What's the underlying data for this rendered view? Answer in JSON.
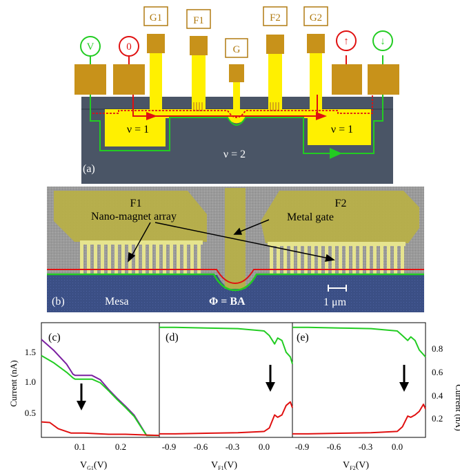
{
  "panel_a": {
    "panel_label": "(a)",
    "top_labels": [
      "V",
      "0",
      "G1",
      "F1",
      "G",
      "F2",
      "G2",
      "↑",
      "↓"
    ],
    "nu1_left": "ν = 1",
    "nu1_right": "ν = 1",
    "nu2": "ν = 2",
    "colors": {
      "substrate": "#4a5566",
      "gold": "#c8921a",
      "yellow": "#fff000",
      "green": "#22cc22",
      "red": "#e01010"
    }
  },
  "panel_b": {
    "panel_label": "(b)",
    "f1": "F1",
    "f2": "F2",
    "nano_label": "Nano-magnet array",
    "gate_label": "Metal gate",
    "mesa": "Mesa",
    "phi": "Φ = BA",
    "scale": "1 μm"
  },
  "panel_c": {
    "panel_label": "(c)",
    "ylabel": "Current (nA)",
    "xlabel_main": "V",
    "xlabel_sub": "G1",
    "xlabel_unit": "(V)",
    "yticks": [
      "1.5",
      "1.0",
      "0.5"
    ],
    "xticks": [
      "0.1",
      "0.2"
    ]
  },
  "panel_d": {
    "panel_label": "(d)",
    "xlabel_main": "V",
    "xlabel_sub": "F1",
    "xlabel_unit": "(V)",
    "xticks": [
      "-0.9",
      "-0.6",
      "-0.3",
      "0.0"
    ]
  },
  "panel_e": {
    "panel_label": "(e)",
    "ylabel": "Current (nA)",
    "xlabel_main": "V",
    "xlabel_sub": "F2",
    "xlabel_unit": "(V)",
    "xticks": [
      "-0.9",
      "-0.6",
      "-0.3",
      "0.0"
    ],
    "yticks": [
      "0.8",
      "0.6",
      "0.4",
      "0.2"
    ]
  },
  "chart_data": [
    {
      "type": "line",
      "panel": "c",
      "ylabel": "Current (nA)",
      "xlabel": "VG1(V)",
      "xlim": [
        0.0,
        0.28
      ],
      "ylim": [
        0.0,
        1.85
      ],
      "series": [
        {
          "color": "#7a1fa0",
          "x": [
            0.0,
            0.03,
            0.06,
            0.075,
            0.08,
            0.12,
            0.14,
            0.16,
            0.18,
            0.2,
            0.22,
            0.24,
            0.25,
            0.27,
            0.28
          ],
          "y": [
            1.58,
            1.4,
            1.18,
            1.02,
            1.0,
            1.0,
            0.93,
            0.77,
            0.63,
            0.5,
            0.36,
            0.14,
            0.03,
            0.03,
            0.03
          ]
        },
        {
          "color": "#22cc22",
          "x": [
            0.0,
            0.03,
            0.06,
            0.075,
            0.08,
            0.12,
            0.14,
            0.16,
            0.18,
            0.2,
            0.22,
            0.24,
            0.25,
            0.27,
            0.28
          ],
          "y": [
            1.32,
            1.2,
            1.05,
            0.96,
            0.94,
            0.94,
            0.88,
            0.75,
            0.61,
            0.48,
            0.34,
            0.13,
            0.03,
            0.03,
            0.03
          ]
        },
        {
          "color": "#e01010",
          "x": [
            0.0,
            0.02,
            0.04,
            0.07,
            0.1,
            0.13,
            0.16,
            0.2,
            0.24,
            0.28
          ],
          "y": [
            0.25,
            0.24,
            0.14,
            0.07,
            0.07,
            0.06,
            0.05,
            0.05,
            0.04,
            0.03
          ]
        }
      ]
    },
    {
      "type": "line",
      "panel": "d",
      "xlabel": "VF1(V)",
      "xlim": [
        -1.05,
        0.22
      ],
      "ylim": [
        0.0,
        0.97
      ],
      "series": [
        {
          "color": "#22cc22",
          "x": [
            -1.05,
            -0.9,
            -0.6,
            -0.3,
            -0.05,
            0.0,
            0.05,
            0.08,
            0.12,
            0.16,
            0.2,
            0.22
          ],
          "y": [
            0.93,
            0.93,
            0.925,
            0.92,
            0.9,
            0.86,
            0.79,
            0.84,
            0.82,
            0.72,
            0.68,
            0.62
          ]
        },
        {
          "color": "#e01010",
          "x": [
            -1.05,
            -0.9,
            -0.6,
            -0.3,
            -0.05,
            0.0,
            0.05,
            0.08,
            0.12,
            0.16,
            0.2,
            0.22
          ],
          "y": [
            0.03,
            0.03,
            0.035,
            0.04,
            0.05,
            0.08,
            0.19,
            0.17,
            0.19,
            0.27,
            0.3,
            0.25
          ]
        }
      ]
    },
    {
      "type": "line",
      "panel": "e",
      "ylabel": "Current (nA)",
      "xlabel": "VF2(V)",
      "xlim": [
        -1.05,
        0.22
      ],
      "ylim": [
        0.0,
        0.97
      ],
      "series": [
        {
          "color": "#22cc22",
          "x": [
            -1.05,
            -0.9,
            -0.6,
            -0.3,
            -0.05,
            0.0,
            0.05,
            0.08,
            0.12,
            0.16,
            0.2,
            0.22
          ],
          "y": [
            0.93,
            0.93,
            0.925,
            0.92,
            0.9,
            0.86,
            0.82,
            0.85,
            0.82,
            0.74,
            0.7,
            0.68
          ]
        },
        {
          "color": "#e01010",
          "x": [
            -1.05,
            -0.9,
            -0.6,
            -0.3,
            -0.05,
            0.0,
            0.05,
            0.08,
            0.12,
            0.16,
            0.2,
            0.22
          ],
          "y": [
            0.03,
            0.03,
            0.035,
            0.04,
            0.05,
            0.09,
            0.18,
            0.17,
            0.19,
            0.22,
            0.28,
            0.24
          ]
        }
      ]
    }
  ]
}
